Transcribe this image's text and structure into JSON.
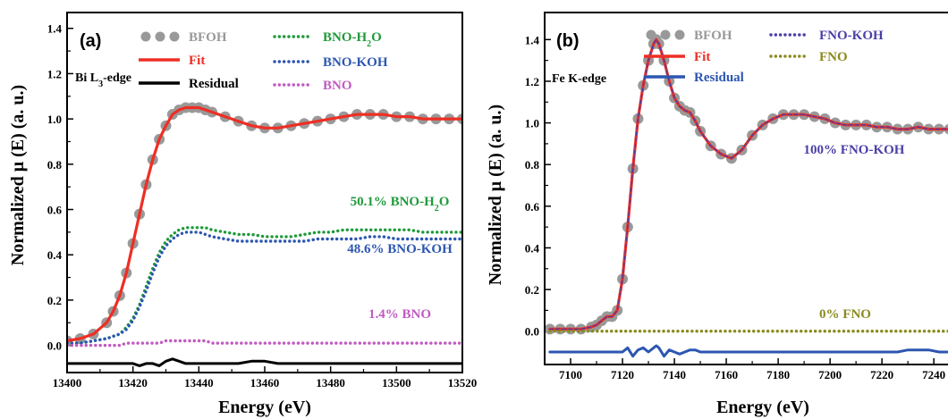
{
  "chart_data": [
    {
      "type": "line",
      "panel_label": "(a)",
      "edge_label": {
        "main": "Bi L",
        "sub": "3",
        "tail": "-edge"
      },
      "xlabel": "Energy (eV)",
      "ylabel": "Normalized μ (E) (a. u.)",
      "xlim": [
        13400,
        13520
      ],
      "ylim": [
        -0.12,
        1.47
      ],
      "xticks": [
        13400,
        13420,
        13440,
        13460,
        13480,
        13500,
        13520
      ],
      "yticks": [
        0.0,
        0.2,
        0.4,
        0.6,
        0.8,
        1.0,
        1.2,
        1.4
      ],
      "ytick_labels": [
        "0.0",
        "0.2",
        "0.4",
        "0.6",
        "0.8",
        "1.0",
        "1.2",
        "1.4"
      ],
      "x": [
        13400,
        13404,
        13408,
        13412,
        13414,
        13416,
        13418,
        13420,
        13422,
        13424,
        13426,
        13428,
        13430,
        13432,
        13434,
        13436,
        13438,
        13440,
        13442,
        13444,
        13448,
        13452,
        13456,
        13460,
        13464,
        13468,
        13472,
        13476,
        13480,
        13484,
        13488,
        13492,
        13496,
        13500,
        13504,
        13508,
        13512,
        13516,
        13520
      ],
      "series": [
        {
          "name": "BFOH",
          "style": "dots",
          "color": "#999999",
          "values": [
            0.02,
            0.03,
            0.05,
            0.1,
            0.15,
            0.22,
            0.32,
            0.45,
            0.58,
            0.71,
            0.82,
            0.91,
            0.97,
            1.02,
            1.04,
            1.05,
            1.05,
            1.05,
            1.04,
            1.03,
            1.01,
            0.99,
            0.97,
            0.96,
            0.96,
            0.97,
            0.98,
            0.99,
            1.0,
            1.01,
            1.02,
            1.02,
            1.02,
            1.01,
            1.01,
            1.0,
            1.0,
            1.0,
            1.0
          ]
        },
        {
          "name": "Fit",
          "style": "solid",
          "color": "#ee2e24",
          "values": [
            0.02,
            0.03,
            0.05,
            0.1,
            0.15,
            0.22,
            0.32,
            0.45,
            0.58,
            0.71,
            0.82,
            0.91,
            0.97,
            1.02,
            1.04,
            1.05,
            1.05,
            1.05,
            1.04,
            1.03,
            1.01,
            0.99,
            0.97,
            0.96,
            0.96,
            0.97,
            0.98,
            0.99,
            1.0,
            1.01,
            1.02,
            1.02,
            1.02,
            1.01,
            1.01,
            1.0,
            1.0,
            1.0,
            1.0
          ]
        },
        {
          "name": "Residual",
          "style": "solid",
          "color": "#000000",
          "values": [
            -0.08,
            -0.08,
            -0.08,
            -0.08,
            -0.08,
            -0.08,
            -0.08,
            -0.08,
            -0.09,
            -0.08,
            -0.08,
            -0.09,
            -0.07,
            -0.06,
            -0.07,
            -0.08,
            -0.08,
            -0.08,
            -0.08,
            -0.08,
            -0.08,
            -0.08,
            -0.07,
            -0.07,
            -0.08,
            -0.08,
            -0.08,
            -0.08,
            -0.08,
            -0.08,
            -0.08,
            -0.08,
            -0.08,
            -0.08,
            -0.08,
            -0.08,
            -0.08,
            -0.08,
            -0.08
          ]
        },
        {
          "name": "BNO-H2O",
          "style": "dotted",
          "color": "#1f9a3a",
          "values": [
            0.01,
            0.01,
            0.02,
            0.03,
            0.04,
            0.05,
            0.08,
            0.12,
            0.18,
            0.26,
            0.34,
            0.41,
            0.46,
            0.49,
            0.51,
            0.52,
            0.52,
            0.52,
            0.52,
            0.51,
            0.5,
            0.49,
            0.49,
            0.48,
            0.48,
            0.48,
            0.49,
            0.5,
            0.5,
            0.51,
            0.51,
            0.51,
            0.51,
            0.51,
            0.51,
            0.5,
            0.5,
            0.5,
            0.5
          ]
        },
        {
          "name": "BNO-KOH",
          "style": "dotted",
          "color": "#2c56b0",
          "values": [
            0.01,
            0.01,
            0.02,
            0.03,
            0.04,
            0.05,
            0.07,
            0.11,
            0.17,
            0.24,
            0.32,
            0.39,
            0.44,
            0.47,
            0.49,
            0.5,
            0.5,
            0.5,
            0.49,
            0.48,
            0.47,
            0.46,
            0.46,
            0.46,
            0.46,
            0.46,
            0.46,
            0.47,
            0.47,
            0.47,
            0.47,
            0.48,
            0.48,
            0.47,
            0.47,
            0.47,
            0.47,
            0.47,
            0.47
          ]
        },
        {
          "name": "BNO",
          "style": "dotted",
          "color": "#c05ac0",
          "values": [
            0.0,
            0.0,
            0.0,
            0.0,
            0.0,
            0.0,
            0.01,
            0.01,
            0.01,
            0.01,
            0.01,
            0.01,
            0.02,
            0.02,
            0.02,
            0.02,
            0.02,
            0.02,
            0.02,
            0.01,
            0.01,
            0.01,
            0.01,
            0.01,
            0.01,
            0.01,
            0.01,
            0.01,
            0.01,
            0.01,
            0.01,
            0.01,
            0.01,
            0.01,
            0.01,
            0.01,
            0.01,
            0.01,
            0.01
          ]
        }
      ],
      "legend": [
        {
          "label": "BFOH",
          "style": "dots",
          "color": "#999999"
        },
        {
          "label": "Fit",
          "style": "solid",
          "color": "#ee2e24"
        },
        {
          "label": "Residual",
          "style": "solid",
          "color": "#000000"
        },
        {
          "label": "BNO-H",
          "sub": "2",
          "tail": "O",
          "style": "dotted",
          "color": "#1f9a3a"
        },
        {
          "label": "BNO-KOH",
          "style": "dotted",
          "color": "#2c56b0"
        },
        {
          "label": "BNO",
          "style": "dotted",
          "color": "#c05ac0"
        }
      ],
      "annotations": [
        {
          "text": "50.1% BNO-H",
          "sub": "2",
          "tail": "O",
          "color": "#1f9a3a"
        },
        {
          "text": "48.6% BNO-KOH",
          "color": "#2c56b0"
        },
        {
          "text": "1.4% BNO",
          "color": "#c05ac0"
        }
      ]
    },
    {
      "type": "line",
      "panel_label": "(b)",
      "edge_label": {
        "main": "Fe K-edge"
      },
      "xlabel": "Energy (eV)",
      "ylabel": "Normalized μ (E) (a. u.)",
      "xlim": [
        7090,
        7252
      ],
      "ylim": [
        -0.16,
        1.53
      ],
      "xticks": [
        7100,
        7120,
        7140,
        7160,
        7180,
        7200,
        7220,
        7240
      ],
      "yticks": [
        0.0,
        0.2,
        0.4,
        0.6,
        0.8,
        1.0,
        1.2,
        1.4
      ],
      "ytick_labels": [
        "0.0",
        "0.2",
        "0.4",
        "0.6",
        "0.8",
        "1.0",
        "1.2",
        "1.4"
      ],
      "x": [
        7092,
        7096,
        7100,
        7104,
        7108,
        7110,
        7112,
        7114,
        7116,
        7118,
        7120,
        7122,
        7124,
        7126,
        7128,
        7130,
        7132,
        7133,
        7134,
        7136,
        7138,
        7140,
        7142,
        7144,
        7146,
        7148,
        7150,
        7154,
        7158,
        7162,
        7166,
        7170,
        7174,
        7178,
        7182,
        7186,
        7190,
        7194,
        7198,
        7202,
        7206,
        7210,
        7214,
        7218,
        7222,
        7226,
        7230,
        7234,
        7238,
        7242,
        7246,
        7250
      ],
      "series": [
        {
          "name": "BFOH",
          "style": "dots",
          "color": "#999999",
          "values": [
            0.01,
            0.01,
            0.01,
            0.01,
            0.02,
            0.03,
            0.05,
            0.07,
            0.07,
            0.1,
            0.25,
            0.5,
            0.78,
            1.02,
            1.18,
            1.3,
            1.38,
            1.4,
            1.38,
            1.3,
            1.2,
            1.12,
            1.08,
            1.06,
            1.05,
            1.01,
            0.96,
            0.89,
            0.85,
            0.83,
            0.87,
            0.94,
            0.99,
            1.02,
            1.04,
            1.04,
            1.04,
            1.03,
            1.02,
            1.0,
            0.99,
            0.99,
            0.99,
            0.98,
            0.98,
            0.97,
            0.97,
            0.98,
            0.97,
            0.97,
            0.97,
            0.97
          ]
        },
        {
          "name": "Fit",
          "style": "solid",
          "color": "#ee2e24",
          "values": [
            0.01,
            0.01,
            0.01,
            0.01,
            0.02,
            0.03,
            0.05,
            0.07,
            0.07,
            0.1,
            0.25,
            0.5,
            0.78,
            1.02,
            1.18,
            1.3,
            1.38,
            1.4,
            1.38,
            1.3,
            1.2,
            1.12,
            1.08,
            1.06,
            1.05,
            1.01,
            0.96,
            0.89,
            0.85,
            0.83,
            0.87,
            0.94,
            0.99,
            1.02,
            1.04,
            1.04,
            1.04,
            1.03,
            1.02,
            1.0,
            0.99,
            0.99,
            0.99,
            0.98,
            0.98,
            0.97,
            0.97,
            0.98,
            0.97,
            0.97,
            0.97,
            0.97
          ]
        },
        {
          "name": "FNO-KOH",
          "style": "dashed",
          "color": "#4a3fa6",
          "values": [
            0.01,
            0.01,
            0.01,
            0.01,
            0.02,
            0.03,
            0.05,
            0.07,
            0.07,
            0.1,
            0.25,
            0.5,
            0.78,
            1.02,
            1.18,
            1.3,
            1.38,
            1.4,
            1.38,
            1.3,
            1.2,
            1.12,
            1.08,
            1.06,
            1.05,
            1.01,
            0.96,
            0.89,
            0.85,
            0.83,
            0.87,
            0.94,
            0.99,
            1.02,
            1.04,
            1.04,
            1.04,
            1.03,
            1.02,
            1.0,
            0.99,
            0.99,
            0.99,
            0.98,
            0.98,
            0.97,
            0.97,
            0.98,
            0.97,
            0.97,
            0.97,
            0.97
          ]
        },
        {
          "name": "FNO",
          "style": "dotted",
          "color": "#8a8a1e",
          "values": [
            0.0,
            0.0,
            0.0,
            0.0,
            0.0,
            0.0,
            0.0,
            0.0,
            0.0,
            0.0,
            0.0,
            0.0,
            0.0,
            0.0,
            0.0,
            0.0,
            0.0,
            0.0,
            0.0,
            0.0,
            0.0,
            0.0,
            0.0,
            0.0,
            0.0,
            0.0,
            0.0,
            0.0,
            0.0,
            0.0,
            0.0,
            0.0,
            0.0,
            0.0,
            0.0,
            0.0,
            0.0,
            0.0,
            0.0,
            0.0,
            0.0,
            0.0,
            0.0,
            0.0,
            0.0,
            0.0,
            0.0,
            0.0,
            0.0,
            0.0,
            0.0,
            0.0
          ]
        },
        {
          "name": "Residual",
          "style": "solid",
          "color": "#2c56b0",
          "values": [
            -0.1,
            -0.1,
            -0.1,
            -0.1,
            -0.1,
            -0.1,
            -0.1,
            -0.1,
            -0.1,
            -0.1,
            -0.1,
            -0.08,
            -0.12,
            -0.09,
            -0.08,
            -0.1,
            -0.08,
            -0.07,
            -0.08,
            -0.12,
            -0.09,
            -0.1,
            -0.11,
            -0.1,
            -0.09,
            -0.09,
            -0.1,
            -0.1,
            -0.1,
            -0.1,
            -0.1,
            -0.1,
            -0.1,
            -0.1,
            -0.1,
            -0.1,
            -0.1,
            -0.1,
            -0.1,
            -0.1,
            -0.1,
            -0.1,
            -0.1,
            -0.1,
            -0.1,
            -0.1,
            -0.09,
            -0.09,
            -0.09,
            -0.1,
            -0.1,
            -0.1
          ]
        }
      ],
      "legend": [
        {
          "label": "BFOH",
          "style": "dots",
          "color": "#999999"
        },
        {
          "label": "Fit",
          "style": "solid",
          "color": "#ee2e24"
        },
        {
          "label": "Residual",
          "style": "solid",
          "color": "#2c56b0"
        },
        {
          "label": "FNO-KOH",
          "style": "dotted",
          "color": "#4a3fa6"
        },
        {
          "label": "FNO",
          "style": "dotted",
          "color": "#8a8a1e"
        }
      ],
      "annotations": [
        {
          "text": "100% FNO-KOH",
          "color": "#4a3fa6"
        },
        {
          "text": "0% FNO",
          "color": "#8a8a1e"
        }
      ]
    }
  ]
}
